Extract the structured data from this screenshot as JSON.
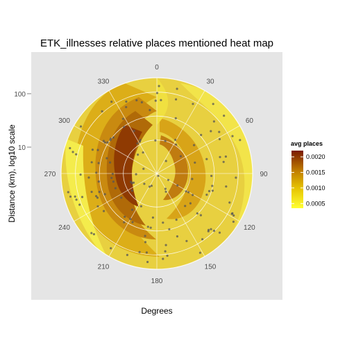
{
  "chart_data": {
    "type": "heatmap",
    "projection": "polar",
    "title": "ETK_illnesses relative places mentioned heat map",
    "xlabel": "Degrees",
    "ylabel": "Distance (km), log10 scale",
    "angle_ticks": [
      "0",
      "30",
      "60",
      "90",
      "120",
      "150",
      "180",
      "210",
      "240",
      "270",
      "300",
      "330"
    ],
    "radial_ticks": [
      "10",
      "100"
    ],
    "legend": {
      "title": "avg places",
      "labels": [
        "0.0020",
        "0.0015",
        "0.0010",
        "0.0005"
      ],
      "values": [
        0.002,
        0.0015,
        0.001,
        0.0005
      ],
      "colors": [
        "#7a1a00",
        "#a85a00",
        "#d89e00",
        "#f7ef3a"
      ],
      "placement": "right"
    },
    "colorscale": {
      "low": "#ffff33",
      "mid": "#d4a017",
      "high": "#7a1a00"
    },
    "grid": true,
    "points_color": "#555555"
  }
}
